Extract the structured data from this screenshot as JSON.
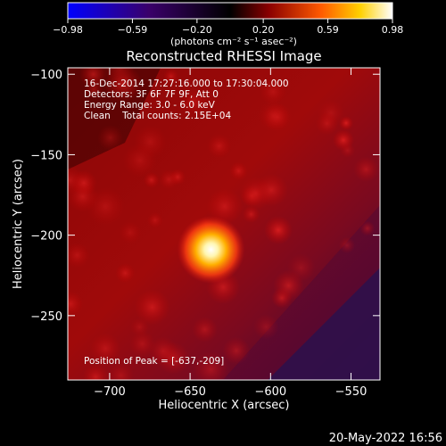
{
  "chart_data": {
    "type": "heatmap",
    "title": "Reconstructed RHESSI Image",
    "xlabel": "Heliocentric X (arcsec)",
    "ylabel": "Heliocentric Y (arcsec)",
    "xlim": [
      -726,
      -532
    ],
    "ylim": [
      -290,
      -96
    ],
    "xticks": [
      -700,
      -650,
      -600,
      -550
    ],
    "yticks": [
      -100,
      -150,
      -200,
      -250
    ],
    "xtick_labels": [
      "−700",
      "−650",
      "−600",
      "−550"
    ],
    "ytick_labels": [
      "−100",
      "−150",
      "−200",
      "−250"
    ],
    "colorbar": {
      "min": -0.98,
      "max": 0.98,
      "ticks": [
        -0.98,
        -0.59,
        -0.2,
        0.2,
        0.59,
        0.98
      ],
      "tick_labels": [
        "−0.98",
        "−0.59",
        "−0.20",
        "0.20",
        "0.59",
        "0.98"
      ],
      "units": "(photons cm⁻² s⁻¹ asec⁻²)"
    },
    "annotations": [
      "16-Dec-2014 17:27:16.000 to 17:30:04.000",
      "Detectors: 3F 6F 7F 9F, Att 0",
      "Energy Range: 3.0 - 6.0 keV",
      "Clean    Total counts: 2.15E+04"
    ],
    "peak_label": "Position of Peak = [-637,-209]",
    "peak": [
      -637,
      -209
    ],
    "peak_value": 0.98
  },
  "footer": {
    "date": "20-May-2022 16:56"
  },
  "colors": {
    "background": "#000000",
    "low": "#0000ff",
    "mid": "#cc1010",
    "high": "#ffffff"
  }
}
